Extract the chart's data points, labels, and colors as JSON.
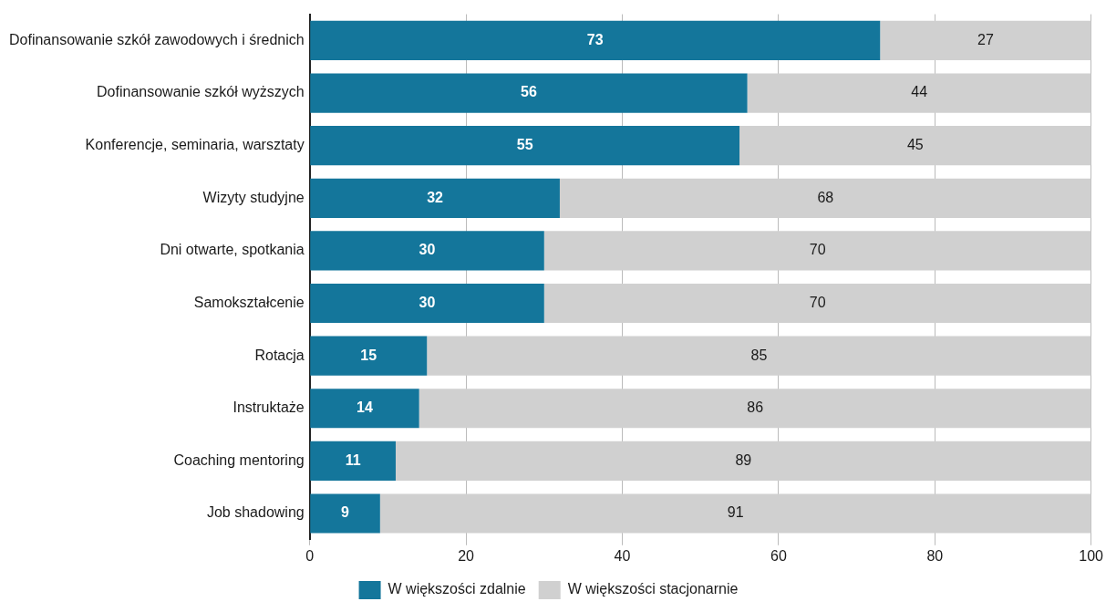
{
  "chart_data": {
    "type": "bar",
    "orientation": "horizontal",
    "stacked": true,
    "categories": [
      "Dofinansowanie szkół zawodowych i średnich",
      "Dofinansowanie szkół wyższych",
      "Konferencje, seminaria, warsztaty",
      "Wizyty studyjne",
      "Dni otwarte, spotkania",
      "Samokształcenie",
      "Rotacja",
      "Instruktaże",
      "Coaching mentoring",
      "Job shadowing"
    ],
    "series": [
      {
        "name": "W większości zdalnie",
        "color": "#14769b",
        "values": [
          73,
          56,
          55,
          32,
          30,
          30,
          15,
          14,
          11,
          9
        ]
      },
      {
        "name": "W większości stacjonarnie",
        "color": "#d0d0d0",
        "values": [
          27,
          44,
          45,
          68,
          70,
          70,
          85,
          86,
          89,
          91
        ]
      }
    ],
    "xlim": [
      0,
      100
    ],
    "xticks": [
      0,
      20,
      40,
      60,
      80,
      100
    ],
    "grid": "x",
    "legend": "bottom",
    "data_labels": true
  }
}
